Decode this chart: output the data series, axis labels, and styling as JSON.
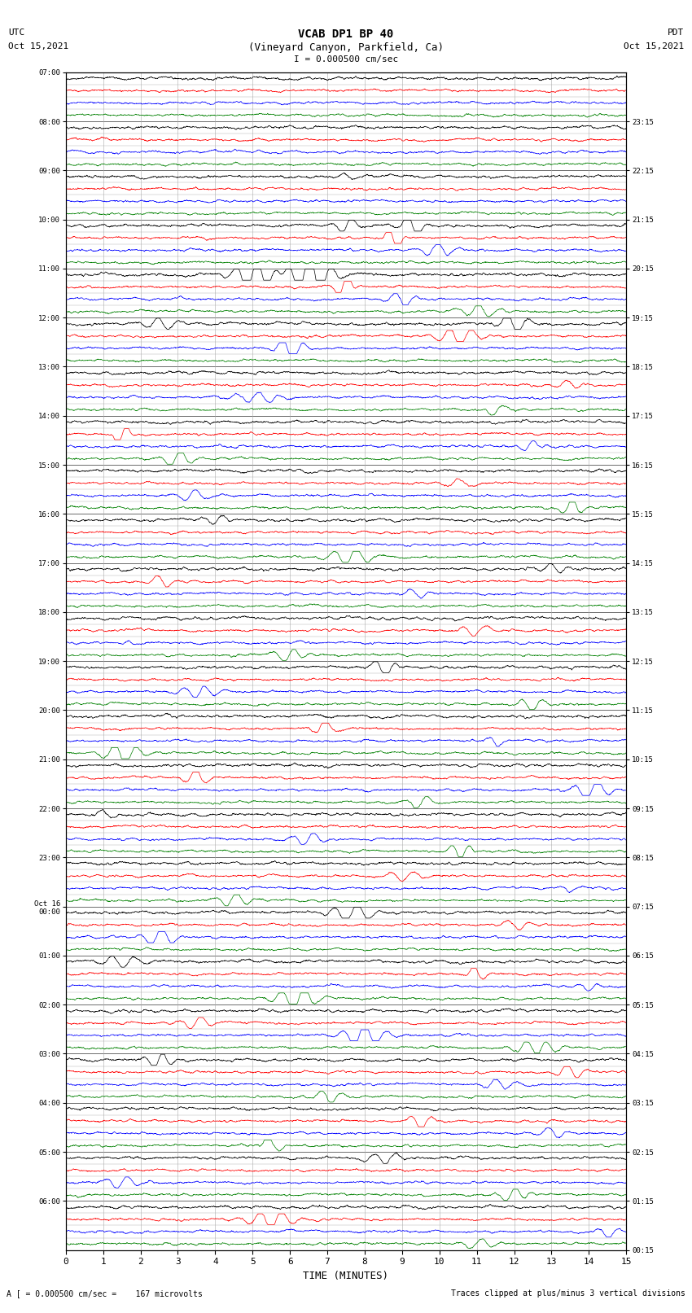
{
  "title_line1": "VCAB DP1 BP 40",
  "title_line2": "(Vineyard Canyon, Parkfield, Ca)",
  "title_line3": "I = 0.000500 cm/sec",
  "left_header_line1": "UTC",
  "left_header_line2": "Oct 15,2021",
  "right_header_line1": "PDT",
  "right_header_line2": "Oct 15,2021",
  "xlabel": "TIME (MINUTES)",
  "bottom_left": "A [ = 0.000500 cm/sec =    167 microvolts",
  "bottom_right": "Traces clipped at plus/minus 3 vertical divisions",
  "x_min": 0,
  "x_max": 15,
  "x_ticks": [
    0,
    1,
    2,
    3,
    4,
    5,
    6,
    7,
    8,
    9,
    10,
    11,
    12,
    13,
    14,
    15
  ],
  "background_color": "#ffffff",
  "trace_colors": [
    "black",
    "red",
    "blue",
    "green"
  ],
  "left_times": [
    "07:00",
    "08:00",
    "09:00",
    "10:00",
    "11:00",
    "12:00",
    "13:00",
    "14:00",
    "15:00",
    "16:00",
    "17:00",
    "18:00",
    "19:00",
    "20:00",
    "21:00",
    "22:00",
    "23:00",
    "Oct 16\n00:00",
    "01:00",
    "02:00",
    "03:00",
    "04:00",
    "05:00",
    "06:00"
  ],
  "right_times": [
    "00:15",
    "01:15",
    "02:15",
    "03:15",
    "04:15",
    "05:15",
    "06:15",
    "07:15",
    "08:15",
    "09:15",
    "10:15",
    "11:15",
    "12:15",
    "13:15",
    "14:15",
    "15:15",
    "16:15",
    "17:15",
    "18:15",
    "19:15",
    "20:15",
    "21:15",
    "22:15",
    "23:15"
  ],
  "n_rows": 24,
  "traces_per_row": 4,
  "grid_color": "#aaaaaa",
  "tick_color": "#000000",
  "event_specs": {
    "2": {
      "times": [
        7.5,
        8.5
      ],
      "amps": [
        0.6,
        0.4
      ],
      "colors": [
        0,
        0
      ]
    },
    "3": {
      "times": [
        7.5,
        8.8,
        9.2,
        10.0
      ],
      "amps": [
        1.8,
        2.8,
        2.2,
        1.5
      ],
      "colors": [
        0,
        1,
        0,
        2
      ]
    },
    "4": {
      "times": [
        5.0,
        6.5,
        7.5,
        9.0,
        11.0
      ],
      "amps": [
        3.5,
        4.5,
        3.0,
        2.0,
        1.5
      ],
      "colors": [
        0,
        0,
        1,
        2,
        3
      ]
    },
    "5": {
      "times": [
        2.5,
        6.0,
        10.5,
        12.0
      ],
      "amps": [
        1.5,
        2.5,
        2.0,
        2.8
      ],
      "colors": [
        0,
        2,
        1,
        0
      ]
    },
    "6": {
      "times": [
        5.0,
        11.5,
        13.5
      ],
      "amps": [
        1.0,
        1.5,
        1.2
      ],
      "colors": [
        2,
        3,
        1
      ]
    },
    "7": {
      "times": [
        1.5,
        3.0,
        12.5
      ],
      "amps": [
        2.5,
        1.8,
        1.5
      ],
      "colors": [
        1,
        3,
        2
      ]
    },
    "8": {
      "times": [
        3.5,
        10.5,
        13.5
      ],
      "amps": [
        1.5,
        1.2,
        2.0
      ],
      "colors": [
        2,
        1,
        3
      ]
    },
    "9": {
      "times": [
        4.0,
        7.5
      ],
      "amps": [
        1.0,
        1.5
      ],
      "colors": [
        0,
        3
      ]
    },
    "10": {
      "times": [
        2.5,
        9.5,
        13.0
      ],
      "amps": [
        1.5,
        1.2,
        1.0
      ],
      "colors": [
        1,
        2,
        0
      ]
    },
    "11": {
      "times": [
        6.0,
        11.0
      ],
      "amps": [
        1.8,
        1.5
      ],
      "colors": [
        3,
        1
      ]
    },
    "12": {
      "times": [
        3.5,
        8.5,
        12.5
      ],
      "amps": [
        1.2,
        2.0,
        1.5
      ],
      "colors": [
        2,
        0,
        3
      ]
    },
    "13": {
      "times": [
        1.5,
        7.0,
        11.5
      ],
      "amps": [
        2.5,
        1.8,
        1.5
      ],
      "colors": [
        3,
        1,
        2
      ]
    },
    "14": {
      "times": [
        3.5,
        9.5,
        14.0
      ],
      "amps": [
        2.0,
        1.5,
        1.8
      ],
      "colors": [
        1,
        3,
        2
      ]
    },
    "15": {
      "times": [
        1.0,
        6.5,
        10.5
      ],
      "amps": [
        1.0,
        1.5,
        2.0
      ],
      "colors": [
        0,
        2,
        3
      ]
    },
    "16": {
      "times": [
        4.5,
        9.0,
        13.5
      ],
      "amps": [
        1.8,
        1.2,
        1.0
      ],
      "colors": [
        3,
        1,
        2
      ]
    },
    "17": {
      "times": [
        2.5,
        7.5,
        12.0
      ],
      "amps": [
        2.0,
        1.5,
        1.2
      ],
      "colors": [
        2,
        0,
        1
      ]
    },
    "18": {
      "times": [
        1.5,
        6.0,
        11.0,
        14.0
      ],
      "amps": [
        1.5,
        2.0,
        1.8,
        1.0
      ],
      "colors": [
        0,
        3,
        1,
        2
      ]
    },
    "19": {
      "times": [
        3.5,
        8.0,
        12.5
      ],
      "amps": [
        1.5,
        2.5,
        1.8
      ],
      "colors": [
        1,
        2,
        3
      ]
    },
    "20": {
      "times": [
        2.5,
        7.0,
        11.5,
        13.5
      ],
      "amps": [
        2.2,
        1.5,
        1.0,
        1.8
      ],
      "colors": [
        0,
        3,
        2,
        1
      ]
    },
    "21": {
      "times": [
        5.5,
        9.5,
        13.0
      ],
      "amps": [
        2.5,
        2.0,
        1.5
      ],
      "colors": [
        3,
        1,
        2
      ]
    },
    "22": {
      "times": [
        1.5,
        8.5,
        12.0
      ],
      "amps": [
        1.5,
        1.2,
        1.8
      ],
      "colors": [
        2,
        0,
        3
      ]
    },
    "23": {
      "times": [
        5.5,
        11.0,
        14.5
      ],
      "amps": [
        2.0,
        1.0,
        1.5
      ],
      "colors": [
        1,
        3,
        2
      ]
    }
  }
}
